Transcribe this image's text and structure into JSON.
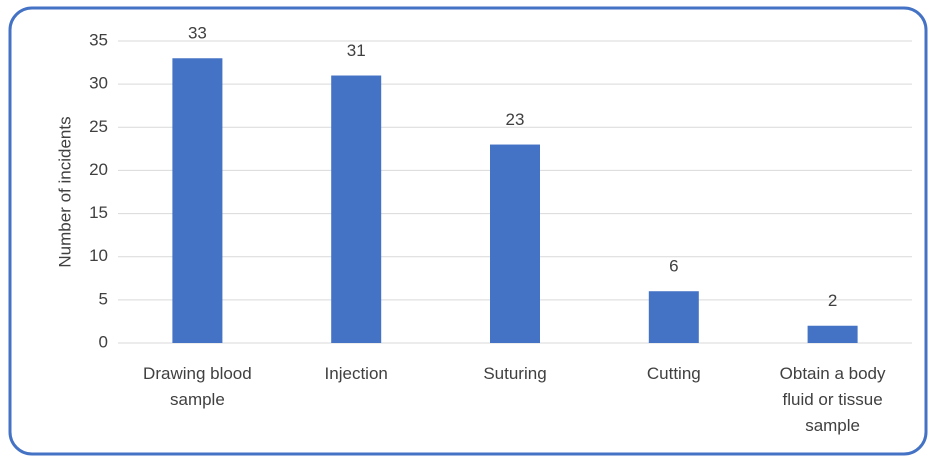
{
  "chart_data": {
    "type": "bar",
    "y_label": "Number of incidents",
    "categories": [
      "Drawing blood sample",
      "Injection",
      "Suturing",
      "Cutting",
      "Obtain a body fluid or tissue sample"
    ],
    "values": [
      33,
      31,
      23,
      6,
      2
    ],
    "color": "#4472c4",
    "ylim": [
      0,
      35
    ],
    "yticks": [
      0,
      5,
      10,
      15,
      20,
      25,
      30,
      35
    ],
    "grid": true
  }
}
